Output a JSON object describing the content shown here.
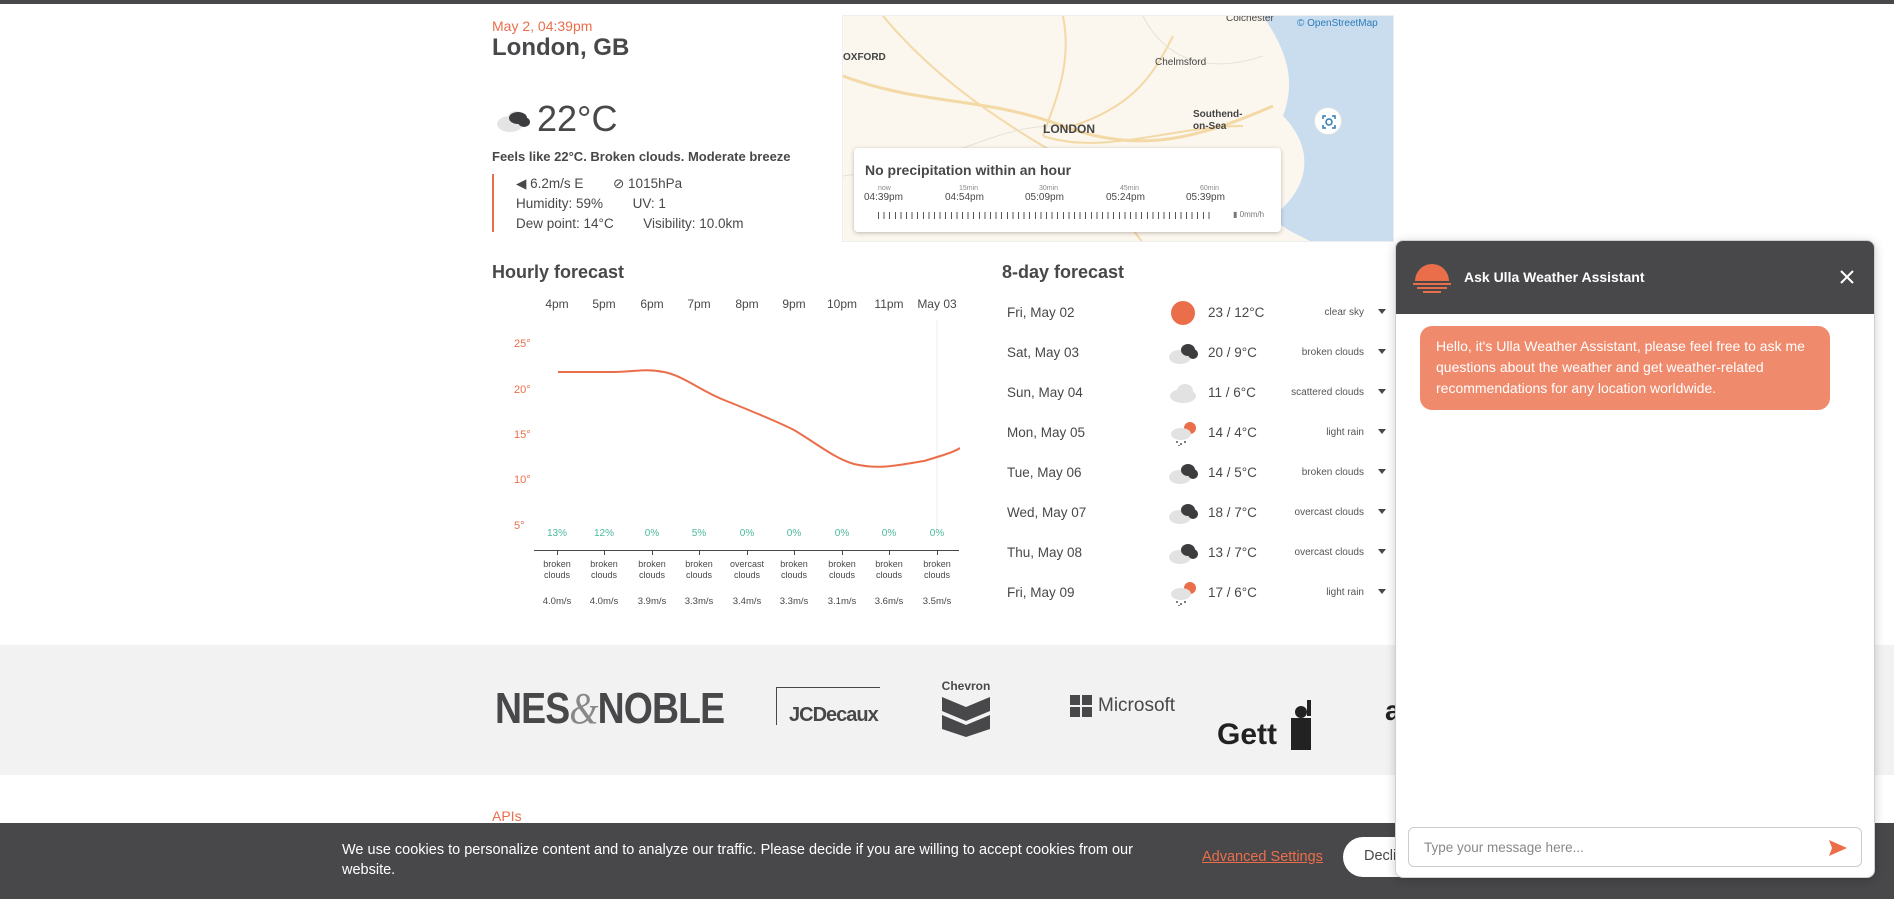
{
  "current": {
    "date": "May 2, 04:39pm",
    "city": "London, GB",
    "temp": "22°C",
    "feels": "Feels like 22°C. Broken clouds. Moderate breeze",
    "wind": "6.2m/s E",
    "pressure": "1015hPa",
    "humidity": "Humidity: 59%",
    "uv": "UV: 1",
    "dew": "Dew point: 14°C",
    "visibility": "Visibility: 10.0km"
  },
  "map": {
    "attribution": "© OpenStreetMap",
    "labels": {
      "colchester": "Colchester",
      "oxford": "OXFORD",
      "chelmsford": "Chelmsford",
      "london": "LONDON",
      "southend": "Southend-on-Sea"
    }
  },
  "precip": {
    "title": "No precipitation within an hour",
    "ticks": [
      {
        "small": "now",
        "time": "04:39pm"
      },
      {
        "small": "15min",
        "time": "04:54pm"
      },
      {
        "small": "30min",
        "time": "05:09pm"
      },
      {
        "small": "45min",
        "time": "05:24pm"
      },
      {
        "small": "60min",
        "time": "05:39pm"
      }
    ],
    "unit": "0mm/h"
  },
  "hourly": {
    "title": "Hourly forecast",
    "hours": [
      "4pm",
      "5pm",
      "6pm",
      "7pm",
      "8pm",
      "9pm",
      "10pm",
      "11pm",
      "May 03"
    ],
    "yticks": [
      "25°",
      "20°",
      "15°",
      "10°",
      "5°"
    ],
    "pop": [
      "13%",
      "12%",
      "0%",
      "5%",
      "0%",
      "0%",
      "0%",
      "0%",
      "0%"
    ],
    "desc": [
      "broken clouds",
      "broken clouds",
      "broken clouds",
      "broken clouds",
      "overcast clouds",
      "broken clouds",
      "broken clouds",
      "broken clouds",
      "broken clouds"
    ],
    "wind": [
      "4.0m/s",
      "4.0m/s",
      "3.9m/s",
      "3.3m/s",
      "3.4m/s",
      "3.3m/s",
      "3.1m/s",
      "3.6m/s",
      "3.5m/s"
    ]
  },
  "daily": {
    "title": "8-day forecast",
    "days": [
      {
        "day": "Fri, May 02",
        "temp": "23 / 12°C",
        "desc": "clear sky",
        "icon": "sun-icon"
      },
      {
        "day": "Sat, May 03",
        "temp": "20 / 9°C",
        "desc": "broken clouds",
        "icon": "broken-clouds-icon"
      },
      {
        "day": "Sun, May 04",
        "temp": "11 / 6°C",
        "desc": "scattered clouds",
        "icon": "cloud-icon"
      },
      {
        "day": "Mon, May 05",
        "temp": "14 / 4°C",
        "desc": "light rain",
        "icon": "light-rain-icon"
      },
      {
        "day": "Tue, May 06",
        "temp": "14 / 5°C",
        "desc": "broken clouds",
        "icon": "broken-clouds-icon"
      },
      {
        "day": "Wed, May 07",
        "temp": "18 / 7°C",
        "desc": "overcast clouds",
        "icon": "broken-clouds-icon"
      },
      {
        "day": "Thu, May 08",
        "temp": "13 / 7°C",
        "desc": "overcast clouds",
        "icon": "broken-clouds-icon"
      },
      {
        "day": "Fri, May 09",
        "temp": "17 / 6°C",
        "desc": "light rain",
        "icon": "light-rain-icon"
      }
    ]
  },
  "brands": {
    "noble_a": "NES",
    "noble_b": "&",
    "noble_c": "NOBLE",
    "jcdecaux": "JCDecaux",
    "chevron": "Chevron",
    "microsoft": "Microsoft",
    "gett": "Gett",
    "partial": "a"
  },
  "footer": {
    "apis": "APIs"
  },
  "cookie": {
    "text": "We use cookies to personalize content and to analyze our traffic. Please decide if you are willing to accept cookies from our website.",
    "advanced": "Advanced Settings",
    "decline": "Decli"
  },
  "chat": {
    "title": "Ask Ulla Weather Assistant",
    "message": "Hello, it's Ulla Weather Assistant, please feel free to ask me questions about the weather and get weather-related recommendations for any location worldwide.",
    "placeholder": "Type your message here..."
  },
  "colors": {
    "accent": "#eb6e4b",
    "dark": "#48484a",
    "pop": "#4bb99f",
    "bubble": "#ef8a6c"
  }
}
